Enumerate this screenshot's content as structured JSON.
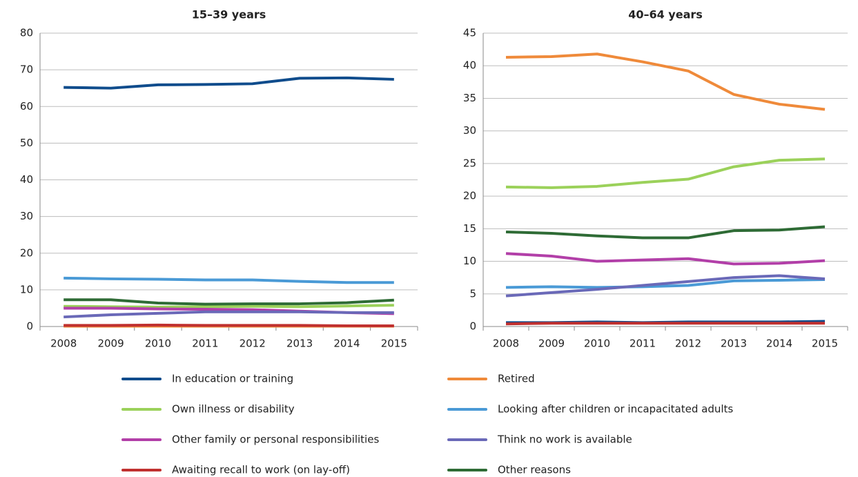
{
  "chart_data": [
    {
      "type": "line",
      "title": "15–39 years",
      "categories": [
        "2008",
        "2009",
        "2010",
        "2011",
        "2012",
        "2013",
        "2014",
        "2015"
      ],
      "ylim": [
        0,
        80
      ],
      "yticks": [
        0,
        10,
        20,
        30,
        40,
        50,
        60,
        70,
        80
      ],
      "grid": true,
      "series": [
        {
          "name": "In education or training",
          "color": "#0f4c8c",
          "values": [
            65.2,
            65.0,
            65.9,
            66.0,
            66.2,
            67.7,
            67.8,
            67.4
          ]
        },
        {
          "name": "Retired",
          "color": "#ef8a3a",
          "values": [
            0.1,
            0.1,
            0.1,
            0.1,
            0.1,
            0.1,
            0.1,
            0.1
          ]
        },
        {
          "name": "Own illness or disability",
          "color": "#9bd15a",
          "values": [
            5.5,
            5.4,
            5.3,
            5.4,
            5.5,
            5.4,
            5.6,
            5.8
          ]
        },
        {
          "name": "Looking after children or incapacitated adults",
          "color": "#4a9ad6",
          "values": [
            13.2,
            13.0,
            12.9,
            12.7,
            12.7,
            12.3,
            12.0,
            12.0
          ]
        },
        {
          "name": "Other family or personal responsibilities",
          "color": "#b23fa8",
          "values": [
            5.0,
            5.0,
            4.8,
            4.7,
            4.6,
            4.2,
            3.8,
            3.5
          ]
        },
        {
          "name": "Think no work is available",
          "color": "#6a69b8",
          "values": [
            2.6,
            3.2,
            3.6,
            4.0,
            4.0,
            4.0,
            3.8,
            3.8
          ]
        },
        {
          "name": "Awaiting recall to work (on lay-off)",
          "color": "#c0302f",
          "values": [
            0.3,
            0.3,
            0.4,
            0.3,
            0.3,
            0.3,
            0.2,
            0.2
          ]
        },
        {
          "name": "Other reasons",
          "color": "#2e6b35",
          "values": [
            7.3,
            7.3,
            6.4,
            6.1,
            6.2,
            6.2,
            6.5,
            7.2
          ]
        }
      ]
    },
    {
      "type": "line",
      "title": "40–64 years",
      "categories": [
        "2008",
        "2009",
        "2010",
        "2011",
        "2012",
        "2013",
        "2014",
        "2015"
      ],
      "ylim": [
        0,
        45
      ],
      "yticks": [
        0,
        5,
        10,
        15,
        20,
        25,
        30,
        35,
        40,
        45
      ],
      "grid": true,
      "series": [
        {
          "name": "In education or training",
          "color": "#0f4c8c",
          "values": [
            0.6,
            0.6,
            0.7,
            0.6,
            0.7,
            0.7,
            0.7,
            0.8
          ]
        },
        {
          "name": "Retired",
          "color": "#ef8a3a",
          "values": [
            41.3,
            41.4,
            41.8,
            40.6,
            39.2,
            35.6,
            34.1,
            33.3
          ]
        },
        {
          "name": "Own illness or disability",
          "color": "#9bd15a",
          "values": [
            21.4,
            21.3,
            21.5,
            22.1,
            22.6,
            24.5,
            25.5,
            25.7
          ]
        },
        {
          "name": "Looking after children or incapacitated adults",
          "color": "#4a9ad6",
          "values": [
            6.0,
            6.1,
            6.0,
            6.1,
            6.3,
            7.0,
            7.1,
            7.2
          ]
        },
        {
          "name": "Other family or personal responsibilities",
          "color": "#b23fa8",
          "values": [
            11.2,
            10.8,
            10.0,
            10.2,
            10.4,
            9.6,
            9.7,
            10.1
          ]
        },
        {
          "name": "Think no work is available",
          "color": "#6a69b8",
          "values": [
            4.7,
            5.2,
            5.7,
            6.3,
            6.9,
            7.5,
            7.8,
            7.3
          ]
        },
        {
          "name": "Awaiting recall to work (on lay-off)",
          "color": "#c0302f",
          "values": [
            0.4,
            0.5,
            0.5,
            0.5,
            0.5,
            0.5,
            0.5,
            0.5
          ]
        },
        {
          "name": "Other reasons",
          "color": "#2e6b35",
          "values": [
            14.5,
            14.3,
            13.9,
            13.6,
            13.6,
            14.7,
            14.8,
            15.3
          ]
        }
      ]
    }
  ]
}
